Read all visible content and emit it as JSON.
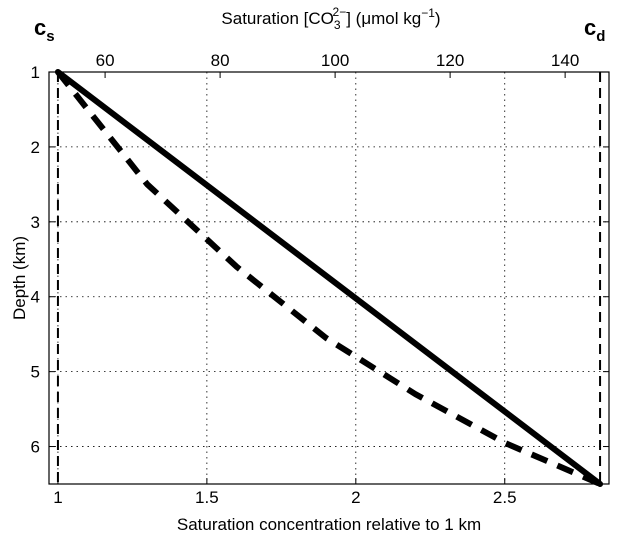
{
  "chart_data": {
    "type": "line",
    "xlabel": "Saturation concentration relative to 1 km",
    "ylabel": "Depth (km)",
    "top_xlabel": {
      "prefix": "Saturation [CO",
      "sub": "3",
      "sup": "2−",
      "middle": "] (μmol kg",
      "sup2": "−1",
      "suffix": ")"
    },
    "xlim": [
      0.97,
      2.85
    ],
    "ylim": [
      1,
      6.5
    ],
    "y_reversed": true,
    "grid": true,
    "grid_style": "dotted",
    "x_ticks": [
      1,
      1.5,
      2,
      2.5
    ],
    "x_tick_labels": [
      "1",
      "1.5",
      "2",
      "2.5"
    ],
    "y_ticks": [
      1,
      2,
      3,
      4,
      5,
      6
    ],
    "y_tick_labels": [
      "1",
      "2",
      "3",
      "4",
      "5",
      "6"
    ],
    "top_ticks": [
      60,
      80,
      100,
      120,
      140
    ],
    "top_tick_labels": [
      "60",
      "80",
      "100",
      "120",
      "140"
    ],
    "top_axis_scale": {
      "value_at_rel_1": 51.8,
      "units_per_rel": 51.8
    },
    "markers": [
      {
        "label": "c",
        "sub": "s",
        "x": 1.0
      },
      {
        "label": "c",
        "sub": "d",
        "x": 2.82
      }
    ],
    "series": [
      {
        "style": "solid",
        "color": "#000000",
        "x": [
          1.0,
          2.82
        ],
        "y": [
          1.0,
          6.5
        ]
      },
      {
        "style": "dashed",
        "color": "#000000",
        "x": [
          1.0,
          1.3,
          1.6,
          1.9,
          2.2,
          2.5,
          2.82
        ],
        "y": [
          1.0,
          2.5,
          3.6,
          4.55,
          5.3,
          5.95,
          6.5
        ]
      }
    ],
    "vlines": [
      {
        "x": 1.0,
        "style": "dashed"
      },
      {
        "x": 2.82,
        "style": "dashed"
      }
    ]
  }
}
